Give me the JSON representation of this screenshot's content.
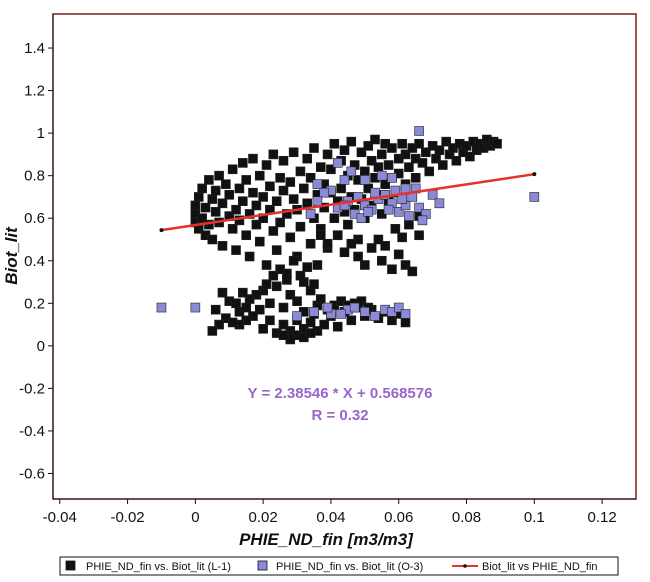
{
  "chart_data": {
    "type": "scatter",
    "xlabel": "PHIE_ND_fin [m3/m3]",
    "ylabel": "Biot_lit",
    "xlim": [
      -0.042,
      0.13
    ],
    "ylim": [
      -0.72,
      1.56
    ],
    "x_ticks": [
      "-0.04",
      "-0.02",
      "0",
      "0.02",
      "0.04",
      "0.06",
      "0.08",
      "0.1",
      "0.12"
    ],
    "x_tick_values": [
      -0.04,
      -0.02,
      0,
      0.02,
      0.04,
      0.06,
      0.08,
      0.1,
      0.12
    ],
    "y_ticks": [
      "1.4",
      "1.2",
      "1",
      "0.8",
      "0.6",
      "0.4",
      "0.2",
      "0",
      "-0.2",
      "-0.4",
      "-0.6"
    ],
    "y_tick_values": [
      1.4,
      1.2,
      1,
      0.8,
      0.6,
      0.4,
      0.2,
      0,
      -0.2,
      -0.4,
      -0.6
    ],
    "grid": false,
    "legend_position": "bottom",
    "colors": {
      "series_l1": "#111111",
      "series_o3": "#8a8ad8",
      "fit_line": "#e8312a",
      "annotation": "#9966cc"
    },
    "annotations": {
      "equation": "Y = 2.38546 * X + 0.568576",
      "r_value": "R = 0.32"
    },
    "series": [
      {
        "name": "PHIE_ND_fin vs. Biot_lit (L-1)",
        "marker": "square",
        "points": [
          [
            0.0,
            0.62
          ],
          [
            0.0,
            0.58
          ],
          [
            0.0,
            0.66
          ],
          [
            0.001,
            0.55
          ],
          [
            0.001,
            0.7
          ],
          [
            0.002,
            0.6
          ],
          [
            0.002,
            0.74
          ],
          [
            0.003,
            0.52
          ],
          [
            0.003,
            0.65
          ],
          [
            0.004,
            0.78
          ],
          [
            0.004,
            0.57
          ],
          [
            0.005,
            0.69
          ],
          [
            0.005,
            0.5
          ],
          [
            0.006,
            0.73
          ],
          [
            0.006,
            0.63
          ],
          [
            0.007,
            0.8
          ],
          [
            0.007,
            0.58
          ],
          [
            0.008,
            0.67
          ],
          [
            0.008,
            0.47
          ],
          [
            0.009,
            0.76
          ],
          [
            0.01,
            0.61
          ],
          [
            0.01,
            0.71
          ],
          [
            0.011,
            0.55
          ],
          [
            0.011,
            0.83
          ],
          [
            0.012,
            0.64
          ],
          [
            0.012,
            0.45
          ],
          [
            0.013,
            0.74
          ],
          [
            0.013,
            0.59
          ],
          [
            0.014,
            0.86
          ],
          [
            0.014,
            0.68
          ],
          [
            0.015,
            0.52
          ],
          [
            0.015,
            0.78
          ],
          [
            0.016,
            0.62
          ],
          [
            0.016,
            0.42
          ],
          [
            0.017,
            0.72
          ],
          [
            0.017,
            0.88
          ],
          [
            0.018,
            0.57
          ],
          [
            0.018,
            0.66
          ],
          [
            0.019,
            0.8
          ],
          [
            0.019,
            0.49
          ],
          [
            0.02,
            0.7
          ],
          [
            0.02,
            0.6
          ],
          [
            0.021,
            0.85
          ],
          [
            0.021,
            0.38
          ],
          [
            0.022,
            0.75
          ],
          [
            0.022,
            0.64
          ],
          [
            0.023,
            0.54
          ],
          [
            0.023,
            0.9
          ],
          [
            0.024,
            0.68
          ],
          [
            0.024,
            0.45
          ],
          [
            0.025,
            0.79
          ],
          [
            0.025,
            0.58
          ],
          [
            0.026,
            0.73
          ],
          [
            0.026,
            0.87
          ],
          [
            0.027,
            0.62
          ],
          [
            0.027,
            0.34
          ],
          [
            0.028,
            0.77
          ],
          [
            0.028,
            0.51
          ],
          [
            0.029,
            0.69
          ],
          [
            0.029,
            0.91
          ],
          [
            0.03,
            0.64
          ],
          [
            0.03,
            0.42
          ],
          [
            0.031,
            0.82
          ],
          [
            0.031,
            0.56
          ],
          [
            0.032,
            0.74
          ],
          [
            0.032,
            0.3
          ],
          [
            0.033,
            0.88
          ],
          [
            0.033,
            0.67
          ],
          [
            0.034,
            0.48
          ],
          [
            0.034,
            0.79
          ],
          [
            0.035,
            0.6
          ],
          [
            0.035,
            0.93
          ],
          [
            0.036,
            0.71
          ],
          [
            0.036,
            0.38
          ],
          [
            0.037,
            0.84
          ],
          [
            0.037,
            0.55
          ],
          [
            0.038,
            0.76
          ],
          [
            0.038,
            0.65
          ],
          [
            0.039,
            0.9
          ],
          [
            0.039,
            0.46
          ],
          [
            0.04,
            0.72
          ],
          [
            0.04,
            0.83
          ],
          [
            0.041,
            0.6
          ],
          [
            0.041,
            0.95
          ],
          [
            0.042,
            0.68
          ],
          [
            0.042,
            0.52
          ],
          [
            0.043,
            0.87
          ],
          [
            0.043,
            0.74
          ],
          [
            0.044,
            0.63
          ],
          [
            0.044,
            0.92
          ],
          [
            0.045,
            0.8
          ],
          [
            0.045,
            0.57
          ],
          [
            0.046,
            0.7
          ],
          [
            0.046,
            0.96
          ],
          [
            0.047,
            0.85
          ],
          [
            0.047,
            0.64
          ],
          [
            0.048,
            0.78
          ],
          [
            0.048,
            0.5
          ],
          [
            0.049,
            0.91
          ],
          [
            0.049,
            0.69
          ],
          [
            0.05,
            0.82
          ],
          [
            0.05,
            0.6
          ],
          [
            0.051,
            0.94
          ],
          [
            0.051,
            0.74
          ],
          [
            0.052,
            0.87
          ],
          [
            0.052,
            0.66
          ],
          [
            0.053,
            0.79
          ],
          [
            0.053,
            0.97
          ],
          [
            0.054,
            0.71
          ],
          [
            0.054,
            0.84
          ],
          [
            0.055,
            0.62
          ],
          [
            0.055,
            0.9
          ],
          [
            0.056,
            0.76
          ],
          [
            0.056,
            0.95
          ],
          [
            0.057,
            0.68
          ],
          [
            0.057,
            0.85
          ],
          [
            0.058,
            0.79
          ],
          [
            0.058,
            0.93
          ],
          [
            0.059,
            0.72
          ],
          [
            0.06,
            0.88
          ],
          [
            0.06,
            0.81
          ],
          [
            0.061,
            0.95
          ],
          [
            0.062,
            0.76
          ],
          [
            0.062,
            0.9
          ],
          [
            0.063,
            0.84
          ],
          [
            0.064,
            0.93
          ],
          [
            0.065,
            0.79
          ],
          [
            0.065,
            0.88
          ],
          [
            0.066,
            0.95
          ],
          [
            0.067,
            0.86
          ],
          [
            0.068,
            0.91
          ],
          [
            0.069,
            0.82
          ],
          [
            0.07,
            0.94
          ],
          [
            0.071,
            0.88
          ],
          [
            0.072,
            0.92
          ],
          [
            0.073,
            0.85
          ],
          [
            0.074,
            0.96
          ],
          [
            0.075,
            0.9
          ],
          [
            0.076,
            0.93
          ],
          [
            0.077,
            0.87
          ],
          [
            0.078,
            0.95
          ],
          [
            0.079,
            0.91
          ],
          [
            0.08,
            0.94
          ],
          [
            0.081,
            0.89
          ],
          [
            0.082,
            0.96
          ],
          [
            0.083,
            0.92
          ],
          [
            0.084,
            0.95
          ],
          [
            0.085,
            0.93
          ],
          [
            0.086,
            0.97
          ],
          [
            0.087,
            0.94
          ],
          [
            0.088,
            0.96
          ],
          [
            0.089,
            0.95
          ],
          [
            0.02,
            0.26
          ],
          [
            0.018,
            0.24
          ],
          [
            0.016,
            0.22
          ],
          [
            0.014,
            0.25
          ],
          [
            0.022,
            0.2
          ],
          [
            0.024,
            0.28
          ],
          [
            0.026,
            0.18
          ],
          [
            0.028,
            0.24
          ],
          [
            0.03,
            0.21
          ],
          [
            0.032,
            0.16
          ],
          [
            0.034,
            0.26
          ],
          [
            0.036,
            0.19
          ],
          [
            0.027,
            0.31
          ],
          [
            0.025,
            0.36
          ],
          [
            0.029,
            0.4
          ],
          [
            0.031,
            0.33
          ],
          [
            0.033,
            0.37
          ],
          [
            0.035,
            0.29
          ],
          [
            0.023,
            0.33
          ],
          [
            0.021,
            0.29
          ],
          [
            0.019,
            0.17
          ],
          [
            0.017,
            0.14
          ],
          [
            0.015,
            0.12
          ],
          [
            0.013,
            0.1
          ],
          [
            0.02,
            0.08
          ],
          [
            0.022,
            0.12
          ],
          [
            0.024,
            0.06
          ],
          [
            0.026,
            0.1
          ],
          [
            0.028,
            0.07
          ],
          [
            0.03,
            0.12
          ],
          [
            0.032,
            0.08
          ],
          [
            0.034,
            0.11
          ],
          [
            0.036,
            0.07
          ],
          [
            0.038,
            0.1
          ],
          [
            0.04,
            0.14
          ],
          [
            0.042,
            0.09
          ],
          [
            0.044,
            0.16
          ],
          [
            0.046,
            0.12
          ],
          [
            0.048,
            0.18
          ],
          [
            0.05,
            0.14
          ],
          [
            0.052,
            0.17
          ],
          [
            0.054,
            0.13
          ],
          [
            0.056,
            0.16
          ],
          [
            0.058,
            0.12
          ],
          [
            0.06,
            0.15
          ],
          [
            0.062,
            0.11
          ],
          [
            0.041,
            0.19
          ],
          [
            0.043,
            0.21
          ],
          [
            0.045,
            0.19
          ],
          [
            0.047,
            0.2
          ],
          [
            0.049,
            0.21
          ],
          [
            0.051,
            0.18
          ],
          [
            0.039,
            0.17
          ],
          [
            0.037,
            0.22
          ],
          [
            0.035,
            0.15
          ],
          [
            0.03,
            0.05
          ],
          [
            0.028,
            0.03
          ],
          [
            0.032,
            0.04
          ],
          [
            0.034,
            0.06
          ],
          [
            0.026,
            0.05
          ],
          [
            0.01,
            0.21
          ],
          [
            0.008,
            0.25
          ],
          [
            0.012,
            0.2
          ],
          [
            0.006,
            0.17
          ],
          [
            0.009,
            0.13
          ],
          [
            0.011,
            0.11
          ],
          [
            0.007,
            0.1
          ],
          [
            0.005,
            0.07
          ],
          [
            0.013,
            0.16
          ],
          [
            0.015,
            0.18
          ],
          [
            0.048,
            0.42
          ],
          [
            0.05,
            0.38
          ],
          [
            0.052,
            0.46
          ],
          [
            0.055,
            0.4
          ],
          [
            0.058,
            0.36
          ],
          [
            0.06,
            0.43
          ],
          [
            0.062,
            0.38
          ],
          [
            0.064,
            0.35
          ],
          [
            0.054,
            0.5
          ],
          [
            0.056,
            0.47
          ],
          [
            0.046,
            0.48
          ],
          [
            0.044,
            0.44
          ],
          [
            0.042,
            0.52
          ],
          [
            0.061,
            0.51
          ],
          [
            0.059,
            0.55
          ],
          [
            0.063,
            0.57
          ],
          [
            0.066,
            0.52
          ],
          [
            0.039,
            0.48
          ],
          [
            0.037,
            0.52
          ],
          [
            0.066,
            0.61
          ]
        ]
      },
      {
        "name": "PHIE_ND_fin vs. Biot_lit (O-3)",
        "marker": "square",
        "points": [
          [
            0.066,
            1.01
          ],
          [
            0.04,
            0.73
          ],
          [
            0.05,
            0.78
          ],
          [
            0.055,
            0.8
          ],
          [
            0.045,
            0.68
          ],
          [
            0.042,
            0.65
          ],
          [
            0.047,
            0.62
          ],
          [
            0.05,
            0.66
          ],
          [
            0.052,
            0.64
          ],
          [
            0.054,
            0.69
          ],
          [
            0.056,
            0.71
          ],
          [
            0.058,
            0.67
          ],
          [
            0.06,
            0.63
          ],
          [
            0.062,
            0.66
          ],
          [
            0.064,
            0.7
          ],
          [
            0.066,
            0.65
          ],
          [
            0.068,
            0.62
          ],
          [
            0.059,
            0.73
          ],
          [
            0.053,
            0.72
          ],
          [
            0.048,
            0.7
          ],
          [
            0.044,
            0.66
          ],
          [
            0.057,
            0.64
          ],
          [
            0.061,
            0.69
          ],
          [
            0.065,
            0.74
          ],
          [
            0.063,
            0.61
          ],
          [
            0.049,
            0.6
          ],
          [
            0.051,
            0.63
          ],
          [
            0.07,
            0.71
          ],
          [
            0.072,
            0.67
          ],
          [
            0.1,
            0.7
          ],
          [
            0.044,
            0.78
          ],
          [
            0.046,
            0.82
          ],
          [
            0.042,
            0.86
          ],
          [
            0.038,
            0.72
          ],
          [
            0.036,
            0.68
          ],
          [
            0.036,
            0.76
          ],
          [
            0.034,
            0.62
          ],
          [
            0.058,
            0.79
          ],
          [
            0.062,
            0.74
          ],
          [
            0.067,
            0.59
          ],
          [
            -0.01,
            0.18
          ],
          [
            0.0,
            0.18
          ],
          [
            0.035,
            0.16
          ],
          [
            0.04,
            0.15
          ],
          [
            0.045,
            0.17
          ],
          [
            0.05,
            0.16
          ],
          [
            0.053,
            0.14
          ],
          [
            0.056,
            0.17
          ],
          [
            0.058,
            0.16
          ],
          [
            0.06,
            0.18
          ],
          [
            0.062,
            0.15
          ],
          [
            0.039,
            0.18
          ],
          [
            0.043,
            0.15
          ],
          [
            0.047,
            0.18
          ],
          [
            0.03,
            0.14
          ]
        ]
      },
      {
        "name": "Biot_lit vs PHIE_ND_fin",
        "kind": "line",
        "points": [
          [
            -0.01,
            0.544
          ],
          [
            0.1,
            0.807
          ]
        ]
      }
    ]
  }
}
